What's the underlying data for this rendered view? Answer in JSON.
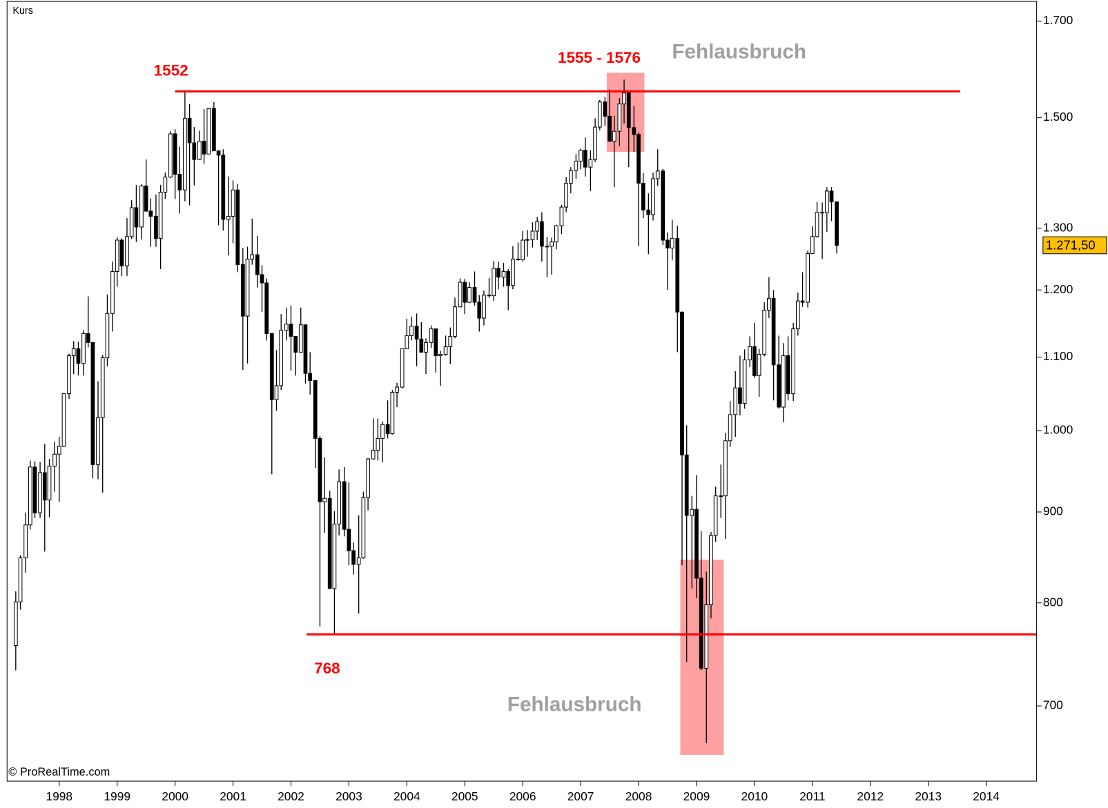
{
  "chart_data": {
    "type": "candlestick",
    "label": "Kurs",
    "source": "© ProRealTime.com",
    "log_scale": true,
    "ylim": [
      635,
      1744
    ],
    "xlim": [
      1997.1,
      2014.87
    ],
    "yticks": [
      700,
      800,
      900,
      {
        "value": 1000,
        "label": "1.000"
      },
      {
        "value": 1100,
        "label": "1.100"
      },
      {
        "value": 1200,
        "label": "1.200"
      },
      {
        "value": 1300,
        "label": "1.300"
      },
      {
        "value": 1500,
        "label": "1.500"
      },
      {
        "value": 1700,
        "label": "1.700"
      }
    ],
    "xticks": [
      1998,
      1999,
      2000,
      2001,
      2002,
      2003,
      2004,
      2005,
      2006,
      2007,
      2008,
      2009,
      2010,
      2011,
      2012,
      2013,
      2014
    ],
    "up_color": "#ffffff",
    "down_color": "#000000",
    "x": [
      1997.25,
      1997.33,
      1997.42,
      1997.5,
      1997.58,
      1997.67,
      1997.75,
      1997.83,
      1997.92,
      1998.0,
      1998.08,
      1998.17,
      1998.25,
      1998.33,
      1998.42,
      1998.5,
      1998.58,
      1998.67,
      1998.75,
      1998.83,
      1998.92,
      1999.0,
      1999.08,
      1999.17,
      1999.25,
      1999.33,
      1999.42,
      1999.5,
      1999.58,
      1999.67,
      1999.75,
      1999.83,
      1999.92,
      2000.0,
      2000.08,
      2000.17,
      2000.25,
      2000.33,
      2000.42,
      2000.5,
      2000.58,
      2000.67,
      2000.75,
      2000.83,
      2000.92,
      2001.0,
      2001.08,
      2001.17,
      2001.25,
      2001.33,
      2001.42,
      2001.5,
      2001.58,
      2001.67,
      2001.75,
      2001.83,
      2001.92,
      2002.0,
      2002.08,
      2002.17,
      2002.25,
      2002.33,
      2002.42,
      2002.5,
      2002.58,
      2002.67,
      2002.75,
      2002.83,
      2002.92,
      2003.0,
      2003.08,
      2003.17,
      2003.25,
      2003.33,
      2003.42,
      2003.5,
      2003.58,
      2003.67,
      2003.75,
      2003.83,
      2003.92,
      2004.0,
      2004.08,
      2004.17,
      2004.25,
      2004.33,
      2004.42,
      2004.5,
      2004.58,
      2004.67,
      2004.75,
      2004.83,
      2004.92,
      2005.0,
      2005.08,
      2005.17,
      2005.25,
      2005.33,
      2005.42,
      2005.5,
      2005.58,
      2005.67,
      2005.75,
      2005.83,
      2005.92,
      2006.0,
      2006.08,
      2006.17,
      2006.25,
      2006.33,
      2006.42,
      2006.5,
      2006.58,
      2006.67,
      2006.75,
      2006.83,
      2006.92,
      2007.0,
      2007.08,
      2007.17,
      2007.25,
      2007.33,
      2007.42,
      2007.5,
      2007.58,
      2007.67,
      2007.75,
      2007.83,
      2007.92,
      2008.0,
      2008.08,
      2008.17,
      2008.25,
      2008.33,
      2008.42,
      2008.5,
      2008.58,
      2008.67,
      2008.75,
      2008.83,
      2008.92,
      2009.0,
      2009.08,
      2009.17,
      2009.25,
      2009.33,
      2009.42,
      2009.5,
      2009.58,
      2009.67,
      2009.75,
      2009.83,
      2009.92,
      2010.0,
      2010.08,
      2010.17,
      2010.25,
      2010.33,
      2010.42,
      2010.5,
      2010.58,
      2010.67,
      2010.75,
      2010.83,
      2010.92,
      2011.0,
      2011.08,
      2011.17,
      2011.25,
      2011.33,
      2011.42
    ],
    "candles": [
      [
        757,
        812,
        733,
        801
      ],
      [
        801,
        851,
        793,
        848
      ],
      [
        848,
        899,
        832,
        885
      ],
      [
        885,
        962,
        880,
        954
      ],
      [
        954,
        961,
        893,
        899
      ],
      [
        899,
        960,
        893,
        947
      ],
      [
        947,
        983,
        855,
        914
      ],
      [
        914,
        964,
        894,
        955
      ],
      [
        955,
        986,
        924,
        970
      ],
      [
        970,
        992,
        912,
        980
      ],
      [
        980,
        1050,
        979,
        1049
      ],
      [
        1049,
        1105,
        1042,
        1102
      ],
      [
        1102,
        1123,
        1076,
        1112
      ],
      [
        1112,
        1122,
        1074,
        1091
      ],
      [
        1091,
        1139,
        1074,
        1134
      ],
      [
        1134,
        1190,
        1114,
        1121
      ],
      [
        1121,
        1122,
        940,
        957
      ],
      [
        957,
        1066,
        939,
        1017
      ],
      [
        1017,
        1103,
        923,
        1099
      ],
      [
        1099,
        1193,
        1087,
        1164
      ],
      [
        1164,
        1245,
        1137,
        1229
      ],
      [
        1229,
        1285,
        1205,
        1280
      ],
      [
        1280,
        1283,
        1222,
        1238
      ],
      [
        1238,
        1317,
        1222,
        1286
      ],
      [
        1286,
        1348,
        1282,
        1335
      ],
      [
        1335,
        1375,
        1277,
        1302
      ],
      [
        1302,
        1376,
        1281,
        1373
      ],
      [
        1373,
        1421,
        1328,
        1329
      ],
      [
        1329,
        1351,
        1269,
        1320
      ],
      [
        1320,
        1358,
        1269,
        1283
      ],
      [
        1283,
        1375,
        1233,
        1362
      ],
      [
        1362,
        1397,
        1350,
        1389
      ],
      [
        1389,
        1474,
        1387,
        1469
      ],
      [
        1469,
        1478,
        1350,
        1394
      ],
      [
        1394,
        1445,
        1325,
        1366
      ],
      [
        1366,
        1552,
        1346,
        1499
      ],
      [
        1499,
        1527,
        1339,
        1452
      ],
      [
        1452,
        1482,
        1374,
        1421
      ],
      [
        1421,
        1475,
        1420,
        1455
      ],
      [
        1455,
        1517,
        1413,
        1431
      ],
      [
        1431,
        1519,
        1431,
        1518
      ],
      [
        1518,
        1531,
        1437,
        1437
      ],
      [
        1437,
        1437,
        1305,
        1429
      ],
      [
        1429,
        1440,
        1296,
        1315
      ],
      [
        1315,
        1390,
        1255,
        1320
      ],
      [
        1320,
        1383,
        1275,
        1366
      ],
      [
        1366,
        1376,
        1228,
        1240
      ],
      [
        1240,
        1267,
        1082,
        1160
      ],
      [
        1160,
        1269,
        1091,
        1249
      ],
      [
        1249,
        1316,
        1240,
        1256
      ],
      [
        1256,
        1287,
        1204,
        1224
      ],
      [
        1224,
        1239,
        1166,
        1211
      ],
      [
        1211,
        1218,
        1124,
        1134
      ],
      [
        1134,
        1135,
        945,
        1041
      ],
      [
        1041,
        1110,
        1026,
        1060
      ],
      [
        1060,
        1163,
        1054,
        1139
      ],
      [
        1139,
        1173,
        1124,
        1148
      ],
      [
        1148,
        1176,
        1081,
        1130
      ],
      [
        1130,
        1130,
        1074,
        1107
      ],
      [
        1107,
        1173,
        1107,
        1147
      ],
      [
        1147,
        1147,
        1063,
        1077
      ],
      [
        1077,
        1107,
        1048,
        1067
      ],
      [
        1067,
        1068,
        953,
        990
      ],
      [
        990,
        993,
        776,
        912
      ],
      [
        912,
        966,
        876,
        916
      ],
      [
        916,
        925,
        815,
        815
      ],
      [
        815,
        901,
        768,
        886
      ],
      [
        886,
        951,
        873,
        936
      ],
      [
        936,
        954,
        872,
        880
      ],
      [
        880,
        935,
        840,
        856
      ],
      [
        856,
        865,
        830,
        841
      ],
      [
        841,
        896,
        789,
        848
      ],
      [
        848,
        924,
        847,
        917
      ],
      [
        917,
        965,
        902,
        964
      ],
      [
        964,
        1016,
        963,
        975
      ],
      [
        975,
        1016,
        962,
        990
      ],
      [
        990,
        1012,
        960,
        1008
      ],
      [
        1008,
        1040,
        990,
        996
      ],
      [
        996,
        1054,
        995,
        1051
      ],
      [
        1051,
        1064,
        1031,
        1058
      ],
      [
        1058,
        1112,
        1056,
        1112
      ],
      [
        1112,
        1156,
        1112,
        1131
      ],
      [
        1131,
        1159,
        1124,
        1145
      ],
      [
        1145,
        1164,
        1087,
        1126
      ],
      [
        1126,
        1151,
        1107,
        1107
      ],
      [
        1107,
        1127,
        1076,
        1121
      ],
      [
        1121,
        1146,
        1113,
        1141
      ],
      [
        1141,
        1141,
        1078,
        1102
      ],
      [
        1102,
        1109,
        1060,
        1104
      ],
      [
        1104,
        1131,
        1102,
        1115
      ],
      [
        1115,
        1143,
        1090,
        1130
      ],
      [
        1130,
        1188,
        1127,
        1174
      ],
      [
        1174,
        1218,
        1173,
        1212
      ],
      [
        1212,
        1217,
        1163,
        1181
      ],
      [
        1181,
        1212,
        1180,
        1204
      ],
      [
        1204,
        1229,
        1176,
        1181
      ],
      [
        1181,
        1192,
        1137,
        1157
      ],
      [
        1157,
        1199,
        1146,
        1192
      ],
      [
        1192,
        1219,
        1188,
        1191
      ],
      [
        1191,
        1246,
        1183,
        1234
      ],
      [
        1234,
        1245,
        1201,
        1220
      ],
      [
        1220,
        1243,
        1205,
        1229
      ],
      [
        1229,
        1233,
        1169,
        1207
      ],
      [
        1207,
        1270,
        1201,
        1249
      ],
      [
        1249,
        1276,
        1246,
        1248
      ],
      [
        1248,
        1295,
        1245,
        1280
      ],
      [
        1280,
        1297,
        1253,
        1281
      ],
      [
        1281,
        1310,
        1268,
        1295
      ],
      [
        1295,
        1319,
        1280,
        1311
      ],
      [
        1311,
        1327,
        1245,
        1270
      ],
      [
        1270,
        1285,
        1220,
        1270
      ],
      [
        1270,
        1284,
        1224,
        1277
      ],
      [
        1277,
        1306,
        1265,
        1304
      ],
      [
        1304,
        1340,
        1290,
        1336
      ],
      [
        1336,
        1389,
        1327,
        1378
      ],
      [
        1378,
        1407,
        1360,
        1401
      ],
      [
        1401,
        1431,
        1386,
        1418
      ],
      [
        1418,
        1441,
        1403,
        1438
      ],
      [
        1438,
        1462,
        1390,
        1407
      ],
      [
        1407,
        1438,
        1364,
        1421
      ],
      [
        1421,
        1499,
        1416,
        1482
      ],
      [
        1482,
        1535,
        1476,
        1531
      ],
      [
        1531,
        1541,
        1484,
        1503
      ],
      [
        1503,
        1556,
        1454,
        1455
      ],
      [
        1455,
        1504,
        1371,
        1474
      ],
      [
        1474,
        1539,
        1446,
        1527
      ],
      [
        1527,
        1576,
        1489,
        1549
      ],
      [
        1549,
        1552,
        1407,
        1481
      ],
      [
        1481,
        1523,
        1435,
        1468
      ],
      [
        1468,
        1472,
        1270,
        1378
      ],
      [
        1378,
        1396,
        1317,
        1331
      ],
      [
        1331,
        1360,
        1257,
        1323
      ],
      [
        1323,
        1397,
        1313,
        1386
      ],
      [
        1386,
        1440,
        1373,
        1400
      ],
      [
        1400,
        1404,
        1272,
        1280
      ],
      [
        1280,
        1293,
        1200,
        1267
      ],
      [
        1267,
        1314,
        1247,
        1283
      ],
      [
        1283,
        1304,
        1107,
        1166
      ],
      [
        1166,
        1167,
        840,
        969
      ],
      [
        969,
        1007,
        741,
        896
      ],
      [
        896,
        919,
        815,
        903
      ],
      [
        903,
        944,
        805,
        826
      ],
      [
        826,
        878,
        733,
        735
      ],
      [
        735,
        833,
        667,
        798
      ],
      [
        798,
        877,
        784,
        873
      ],
      [
        873,
        930,
        866,
        919
      ],
      [
        919,
        957,
        893,
        919
      ],
      [
        919,
        997,
        869,
        987
      ],
      [
        987,
        1039,
        979,
        1021
      ],
      [
        1021,
        1080,
        992,
        1057
      ],
      [
        1057,
        1102,
        1020,
        1036
      ],
      [
        1036,
        1111,
        1029,
        1096
      ],
      [
        1096,
        1130,
        1086,
        1115
      ],
      [
        1115,
        1150,
        1071,
        1074
      ],
      [
        1074,
        1112,
        1045,
        1104
      ],
      [
        1104,
        1181,
        1101,
        1169
      ],
      [
        1169,
        1220,
        1157,
        1187
      ],
      [
        1187,
        1200,
        1040,
        1089
      ],
      [
        1089,
        1131,
        1029,
        1031
      ],
      [
        1031,
        1120,
        1011,
        1102
      ],
      [
        1102,
        1130,
        1040,
        1049
      ],
      [
        1049,
        1150,
        1039,
        1141
      ],
      [
        1141,
        1196,
        1131,
        1183
      ],
      [
        1183,
        1228,
        1174,
        1181
      ],
      [
        1181,
        1263,
        1173,
        1258
      ],
      [
        1258,
        1303,
        1257,
        1286
      ],
      [
        1286,
        1345,
        1284,
        1327
      ],
      [
        1327,
        1344,
        1249,
        1326
      ],
      [
        1326,
        1371,
        1294,
        1364
      ],
      [
        1364,
        1371,
        1312,
        1345
      ],
      [
        1345,
        1346,
        1258,
        1271.5
      ]
    ],
    "lines": [
      {
        "value": 1552,
        "x": [
          2000.0,
          2013.55
        ],
        "color": "#ff0000"
      },
      {
        "value": 768,
        "x": [
          2002.27,
          2014.87
        ],
        "color": "#ff0000"
      }
    ],
    "zones": [
      {
        "x": [
          2007.45,
          2008.1
        ],
        "y": [
          1435,
          1590
        ],
        "color": "#ff8080"
      },
      {
        "x": [
          2008.72,
          2009.47
        ],
        "y": [
          657,
          846
        ],
        "color": "#ff8080"
      }
    ],
    "annotations": [
      {
        "text": "1552",
        "color": "#ff0000"
      },
      {
        "text": "1555 - 1576",
        "color": "#ff0000"
      },
      {
        "text": "Fehlausbruch",
        "color": "#a0a0a0"
      },
      {
        "text": "768",
        "color": "#ff0000"
      },
      {
        "text": "Fehlausbruch",
        "color": "#a0a0a0"
      }
    ],
    "last_price": {
      "value": 1271.5,
      "label": "1.271,50",
      "color": "#ffc000"
    }
  }
}
